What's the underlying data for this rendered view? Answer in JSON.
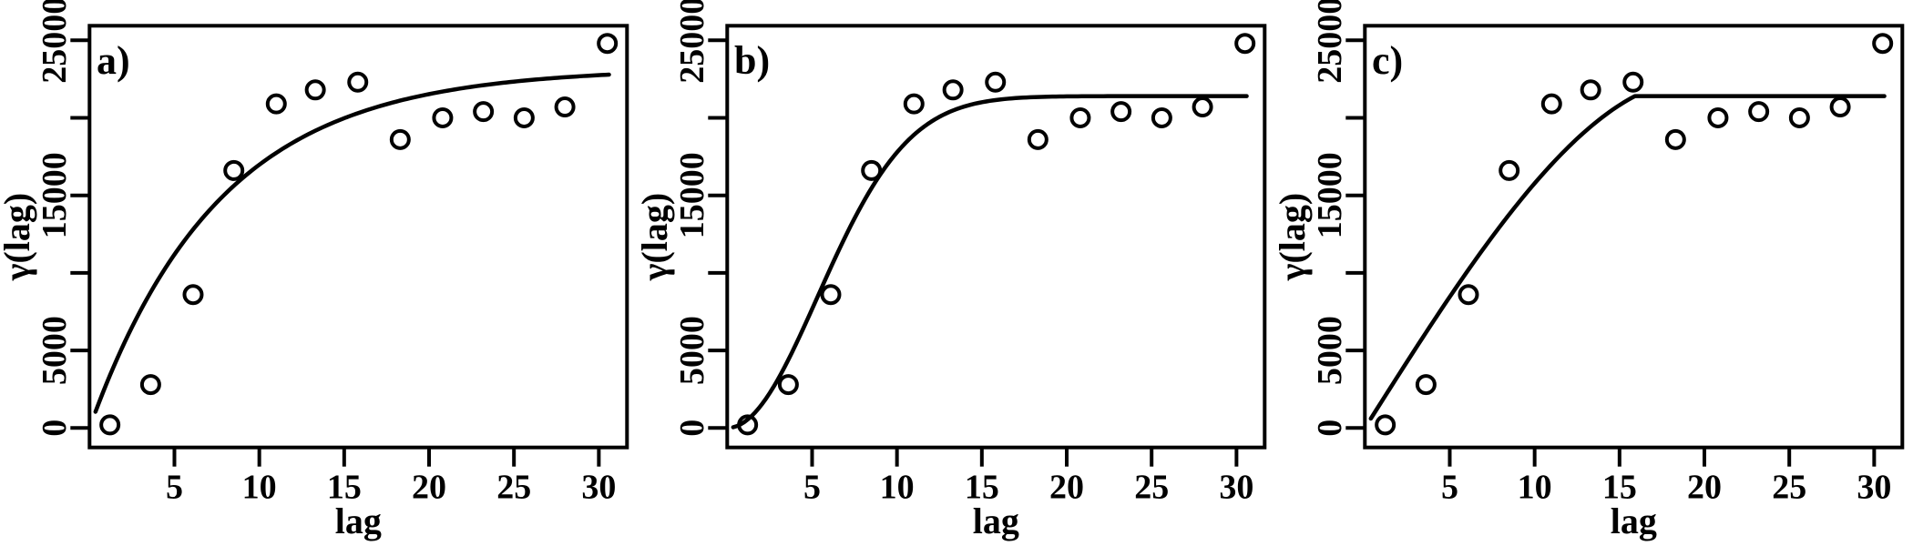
{
  "figure": {
    "background_color": "#ffffff",
    "ink_color": "#000000",
    "description": "Three empirical semivariogram panels with fitted model curves"
  },
  "chart_data": [
    {
      "type": "scatter",
      "panel_label": "a)",
      "xlabel": "lag",
      "ylabel": "γ(lag)",
      "x": [
        1.2,
        3.6,
        6.1,
        8.5,
        11.0,
        13.3,
        15.8,
        18.3,
        20.8,
        23.2,
        25.6,
        28.0,
        30.5
      ],
      "y": [
        200,
        2800,
        8600,
        16600,
        20900,
        21800,
        22300,
        18600,
        20000,
        20400,
        20000,
        20700,
        24800
      ],
      "model_curve": {
        "type": "exponential",
        "sill": 23200,
        "range": 7.6
      },
      "curve_x_range": [
        0.35,
        30.6
      ],
      "x_ticks": [
        5,
        10,
        15,
        20,
        25,
        30
      ],
      "x_tick_labels": [
        "5",
        "10",
        "15",
        "20",
        "25",
        "30"
      ],
      "y_ticks": [
        0,
        5000,
        10000,
        15000,
        20000,
        25000
      ],
      "y_tick_labels": [
        "0",
        "5000",
        "",
        "15000",
        "",
        "25000"
      ],
      "xlim": [
        0,
        31.66
      ],
      "ylim": [
        -1256,
        25938
      ],
      "grid": false,
      "legend": "none"
    },
    {
      "type": "scatter",
      "panel_label": "b)",
      "xlabel": "lag",
      "ylabel": "γ(lag)",
      "x": [
        1.2,
        3.6,
        6.1,
        8.5,
        11.0,
        13.3,
        15.8,
        18.3,
        20.8,
        23.2,
        25.6,
        28.0,
        30.5
      ],
      "y": [
        200,
        2800,
        8600,
        16600,
        20900,
        21800,
        22300,
        18600,
        20000,
        20400,
        20000,
        20700,
        24800
      ],
      "model_curve": {
        "type": "gaussian",
        "sill": 21400,
        "range": 13
      },
      "curve_x_range": [
        0.35,
        30.6
      ],
      "x_ticks": [
        5,
        10,
        15,
        20,
        25,
        30
      ],
      "x_tick_labels": [
        "5",
        "10",
        "15",
        "20",
        "25",
        "30"
      ],
      "y_ticks": [
        0,
        5000,
        10000,
        15000,
        20000,
        25000
      ],
      "y_tick_labels": [
        "0",
        "5000",
        "",
        "15000",
        "",
        "25000"
      ],
      "xlim": [
        0,
        31.66
      ],
      "ylim": [
        -1256,
        25938
      ],
      "grid": false,
      "legend": "none"
    },
    {
      "type": "scatter",
      "panel_label": "c)",
      "xlabel": "lag",
      "ylabel": "γ(lag)",
      "x": [
        1.2,
        3.6,
        6.1,
        8.5,
        11.0,
        13.3,
        15.8,
        18.3,
        20.8,
        23.2,
        25.6,
        28.0,
        30.5
      ],
      "y": [
        200,
        2800,
        8600,
        16600,
        20900,
        21800,
        22300,
        18600,
        20000,
        20400,
        20000,
        20700,
        24800
      ],
      "model_curve": {
        "type": "spherical",
        "sill": 21400,
        "range": 15.9,
        "curvature": 19.5
      },
      "curve_x_range": [
        0.35,
        30.6
      ],
      "x_ticks": [
        5,
        10,
        15,
        20,
        25,
        30
      ],
      "x_tick_labels": [
        "5",
        "10",
        "15",
        "20",
        "25",
        "30"
      ],
      "y_ticks": [
        0,
        5000,
        10000,
        15000,
        20000,
        25000
      ],
      "y_tick_labels": [
        "0",
        "5000",
        "",
        "15000",
        "",
        "25000"
      ],
      "xlim": [
        0,
        31.66
      ],
      "ylim": [
        -1256,
        25938
      ],
      "grid": false,
      "legend": "none"
    }
  ]
}
